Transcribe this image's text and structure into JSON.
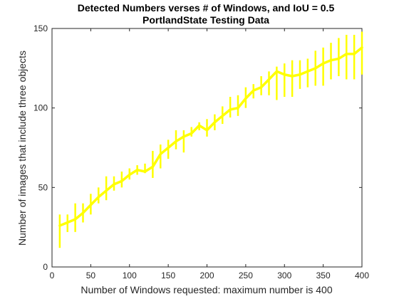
{
  "chart_data": {
    "type": "line",
    "title": "Detected Numbers verses # of Windows, and IoU = 0.5",
    "subtitle": "PortlandState Testing Data",
    "xlabel": "Number of Windows requested: maximum number is 400",
    "ylabel": "Number of images that include three objects",
    "xlim": [
      0,
      400
    ],
    "ylim": [
      0,
      150
    ],
    "xticks": [
      0,
      50,
      100,
      150,
      200,
      250,
      300,
      350,
      400
    ],
    "yticks": [
      0,
      50,
      100,
      150
    ],
    "grid": false,
    "legend": "none",
    "color": "#ffff00",
    "series": [
      {
        "x": [
          10,
          20,
          30,
          40,
          50,
          60,
          70,
          80,
          90,
          100,
          110,
          120,
          130,
          140,
          150,
          160,
          170,
          180,
          190,
          200,
          210,
          220,
          230,
          240,
          250,
          260,
          270,
          280,
          290,
          300,
          310,
          320,
          330,
          340,
          350,
          360,
          370,
          380,
          390,
          400
        ],
        "y": [
          26,
          28,
          30,
          34,
          39,
          44,
          48,
          52,
          54,
          58,
          61,
          60,
          63,
          71,
          75,
          79,
          82,
          84,
          89,
          86,
          91,
          95,
          99,
          100,
          106,
          111,
          113,
          118,
          123,
          121,
          120,
          121,
          123,
          125,
          128,
          130,
          131,
          134,
          134,
          138
        ],
        "error_low": [
          12,
          22,
          22,
          28,
          33,
          40,
          42,
          48,
          50,
          55,
          58,
          59,
          56,
          62,
          68,
          74,
          72,
          82,
          86,
          82,
          86,
          90,
          94,
          95,
          100,
          106,
          108,
          108,
          105,
          107,
          107,
          112,
          113,
          114,
          114,
          118,
          120,
          118,
          118,
          121
        ],
        "error_high": [
          33,
          33,
          40,
          40,
          46,
          50,
          57,
          57,
          60,
          62,
          64,
          65,
          73,
          77,
          80,
          86,
          86,
          88,
          91,
          93,
          96,
          101,
          107,
          108,
          113,
          115,
          120,
          123,
          126,
          128,
          130,
          130,
          131,
          136,
          138,
          141,
          144,
          146,
          146,
          148
        ]
      }
    ]
  }
}
